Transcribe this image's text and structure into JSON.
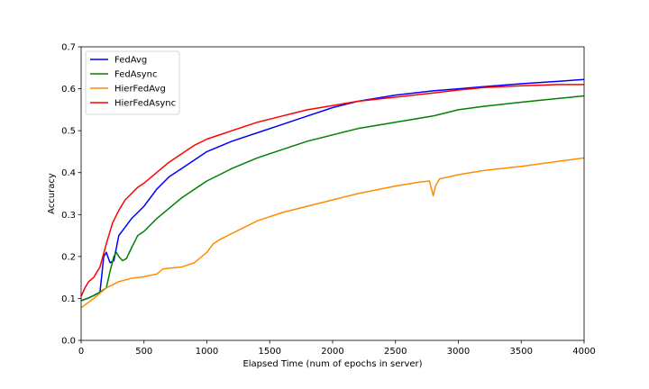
{
  "chart_data": {
    "type": "line",
    "title": "",
    "xlabel": "Elapsed Time (num of epochs in server)",
    "ylabel": "Accuracy",
    "xlim": [
      0,
      4000
    ],
    "ylim": [
      0.0,
      0.7
    ],
    "xticks": [
      0,
      500,
      1000,
      1500,
      2000,
      2500,
      3000,
      3500,
      4000
    ],
    "yticks": [
      0.0,
      0.1,
      0.2,
      0.3,
      0.4,
      0.5,
      0.6,
      0.7
    ],
    "xtick_labels": [
      "0",
      "500",
      "1000",
      "1500",
      "2000",
      "2500",
      "3000",
      "3500",
      "4000"
    ],
    "ytick_labels": [
      "0.0",
      "0.1",
      "0.2",
      "0.3",
      "0.4",
      "0.5",
      "0.6",
      "0.7"
    ],
    "grid": false,
    "legend": "top-left",
    "series": [
      {
        "name": "FedAvg",
        "color": "#0000ff",
        "x": [
          0,
          50,
          100,
          150,
          180,
          200,
          230,
          260,
          300,
          350,
          400,
          450,
          500,
          600,
          700,
          800,
          900,
          1000,
          1200,
          1400,
          1600,
          1800,
          2000,
          2200,
          2500,
          2800,
          3000,
          3200,
          3500,
          3800,
          4000
        ],
        "y": [
          0.095,
          0.1,
          0.107,
          0.115,
          0.2,
          0.21,
          0.185,
          0.19,
          0.25,
          0.27,
          0.29,
          0.305,
          0.32,
          0.36,
          0.39,
          0.41,
          0.43,
          0.45,
          0.475,
          0.495,
          0.515,
          0.535,
          0.555,
          0.57,
          0.585,
          0.595,
          0.6,
          0.605,
          0.612,
          0.618,
          0.622
        ]
      },
      {
        "name": "FedAsync",
        "color": "#008000",
        "x": [
          0,
          50,
          100,
          150,
          200,
          230,
          260,
          280,
          300,
          330,
          360,
          400,
          450,
          500,
          600,
          700,
          800,
          900,
          1000,
          1200,
          1400,
          1600,
          1800,
          2000,
          2200,
          2500,
          2800,
          3000,
          3200,
          3500,
          3800,
          4000
        ],
        "y": [
          0.095,
          0.1,
          0.107,
          0.115,
          0.125,
          0.165,
          0.2,
          0.21,
          0.2,
          0.19,
          0.195,
          0.22,
          0.25,
          0.26,
          0.29,
          0.315,
          0.34,
          0.36,
          0.38,
          0.41,
          0.435,
          0.455,
          0.475,
          0.49,
          0.505,
          0.52,
          0.535,
          0.55,
          0.558,
          0.568,
          0.577,
          0.583
        ]
      },
      {
        "name": "HierFedAvg",
        "color": "#ff8c00",
        "x": [
          0,
          100,
          200,
          300,
          400,
          500,
          600,
          650,
          700,
          800,
          900,
          1000,
          1050,
          1100,
          1200,
          1400,
          1600,
          1800,
          2000,
          2200,
          2500,
          2700,
          2770,
          2800,
          2820,
          2850,
          3000,
          3200,
          3500,
          3800,
          4000
        ],
        "y": [
          0.078,
          0.1,
          0.125,
          0.14,
          0.148,
          0.152,
          0.158,
          0.17,
          0.172,
          0.175,
          0.185,
          0.21,
          0.23,
          0.24,
          0.255,
          0.285,
          0.305,
          0.32,
          0.335,
          0.35,
          0.368,
          0.378,
          0.38,
          0.345,
          0.37,
          0.385,
          0.395,
          0.405,
          0.415,
          0.427,
          0.435
        ]
      },
      {
        "name": "HierFedAsync",
        "color": "#ff0000",
        "x": [
          0,
          30,
          60,
          100,
          150,
          200,
          250,
          300,
          350,
          400,
          450,
          500,
          600,
          700,
          800,
          900,
          1000,
          1200,
          1400,
          1600,
          1800,
          2000,
          2200,
          2500,
          2800,
          3000,
          3200,
          3500,
          3800,
          4000
        ],
        "y": [
          0.105,
          0.125,
          0.14,
          0.15,
          0.175,
          0.23,
          0.28,
          0.31,
          0.335,
          0.35,
          0.365,
          0.375,
          0.4,
          0.425,
          0.445,
          0.465,
          0.48,
          0.5,
          0.52,
          0.535,
          0.55,
          0.56,
          0.57,
          0.58,
          0.59,
          0.597,
          0.603,
          0.607,
          0.61,
          0.61
        ]
      }
    ]
  }
}
